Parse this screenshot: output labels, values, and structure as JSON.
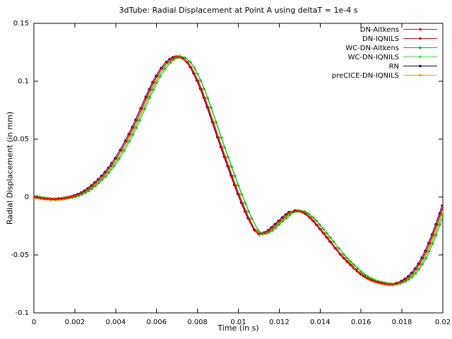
{
  "chart_data": {
    "type": "line",
    "title": "3dTube: Radial Displacement at Point A using deltaT = 1e-4 s",
    "xlabel": "Time (in s)",
    "ylabel": "Radial Displacement (in mm)",
    "xlim": [
      0,
      0.02
    ],
    "ylim": [
      -0.1,
      0.15
    ],
    "xticks": [
      0,
      0.002,
      0.004,
      0.006,
      0.008,
      0.01,
      0.012,
      0.014,
      0.016,
      0.018,
      0.02
    ],
    "xtick_labels": [
      "0",
      "0.002",
      "0.004",
      "0.006",
      "0.008",
      "0.01",
      "0.012",
      "0.014",
      "0.016",
      "0.018",
      "0.02"
    ],
    "yticks": [
      -0.1,
      -0.05,
      0,
      0.05,
      0.1,
      0.15
    ],
    "ytick_labels": [
      "-0.1",
      "-0.05",
      "0",
      "0.05",
      "0.1",
      "0.15"
    ],
    "grid": false,
    "legend_position": "top-right",
    "marker": "point",
    "base_curve": [
      [
        0.0,
        0.0
      ],
      [
        0.0005,
        -0.0015
      ],
      [
        0.001,
        -0.002
      ],
      [
        0.0015,
        -0.001
      ],
      [
        0.002,
        0.001
      ],
      [
        0.0025,
        0.005
      ],
      [
        0.003,
        0.012
      ],
      [
        0.0035,
        0.021
      ],
      [
        0.004,
        0.033
      ],
      [
        0.0045,
        0.048
      ],
      [
        0.005,
        0.066
      ],
      [
        0.0055,
        0.086
      ],
      [
        0.006,
        0.104
      ],
      [
        0.0065,
        0.116
      ],
      [
        0.007,
        0.121
      ],
      [
        0.0075,
        0.116
      ],
      [
        0.008,
        0.1
      ],
      [
        0.0085,
        0.077
      ],
      [
        0.009,
        0.051
      ],
      [
        0.0095,
        0.026
      ],
      [
        0.01,
        0.002
      ],
      [
        0.0105,
        -0.019
      ],
      [
        0.0108,
        -0.029
      ],
      [
        0.011,
        -0.032
      ],
      [
        0.0113,
        -0.031
      ],
      [
        0.0115,
        -0.029
      ],
      [
        0.012,
        -0.021
      ],
      [
        0.0125,
        -0.0135
      ],
      [
        0.0128,
        -0.012
      ],
      [
        0.0131,
        -0.013
      ],
      [
        0.0135,
        -0.018
      ],
      [
        0.014,
        -0.028
      ],
      [
        0.0145,
        -0.039
      ],
      [
        0.015,
        -0.05
      ],
      [
        0.0155,
        -0.059
      ],
      [
        0.016,
        -0.067
      ],
      [
        0.0165,
        -0.072
      ],
      [
        0.017,
        -0.0745
      ],
      [
        0.0175,
        -0.0755
      ],
      [
        0.018,
        -0.073
      ],
      [
        0.0185,
        -0.066
      ],
      [
        0.019,
        -0.053
      ],
      [
        0.0195,
        -0.033
      ],
      [
        0.02,
        -0.008
      ]
    ],
    "series": [
      {
        "name": "preCICE-DN-IQNILS",
        "color": "#ff9900",
        "dx": 6e-05,
        "dy": -0.0008
      },
      {
        "name": "RN",
        "color": "#000080",
        "dx": -4e-05,
        "dy": 0.0006
      },
      {
        "name": "WC-DN-IQNILS",
        "color": "#44e044",
        "dx": 0.00014,
        "dy": 0.001
      },
      {
        "name": "WC-DN-Aitkens",
        "color": "#00c000",
        "dx": 0.00018,
        "dy": 0.0
      },
      {
        "name": "DN-IQNILS",
        "color": "#cc0000",
        "dx": 3e-05,
        "dy": 0.0004
      },
      {
        "name": "DN-Aitkens",
        "color": "#ff0000",
        "dx": 0.0,
        "dy": 0.0
      }
    ],
    "legend_order": [
      "DN-Aitkens",
      "DN-IQNILS",
      "WC-DN-Aitkens",
      "WC-DN-IQNILS",
      "RN",
      "preCICE-DN-IQNILS"
    ]
  }
}
